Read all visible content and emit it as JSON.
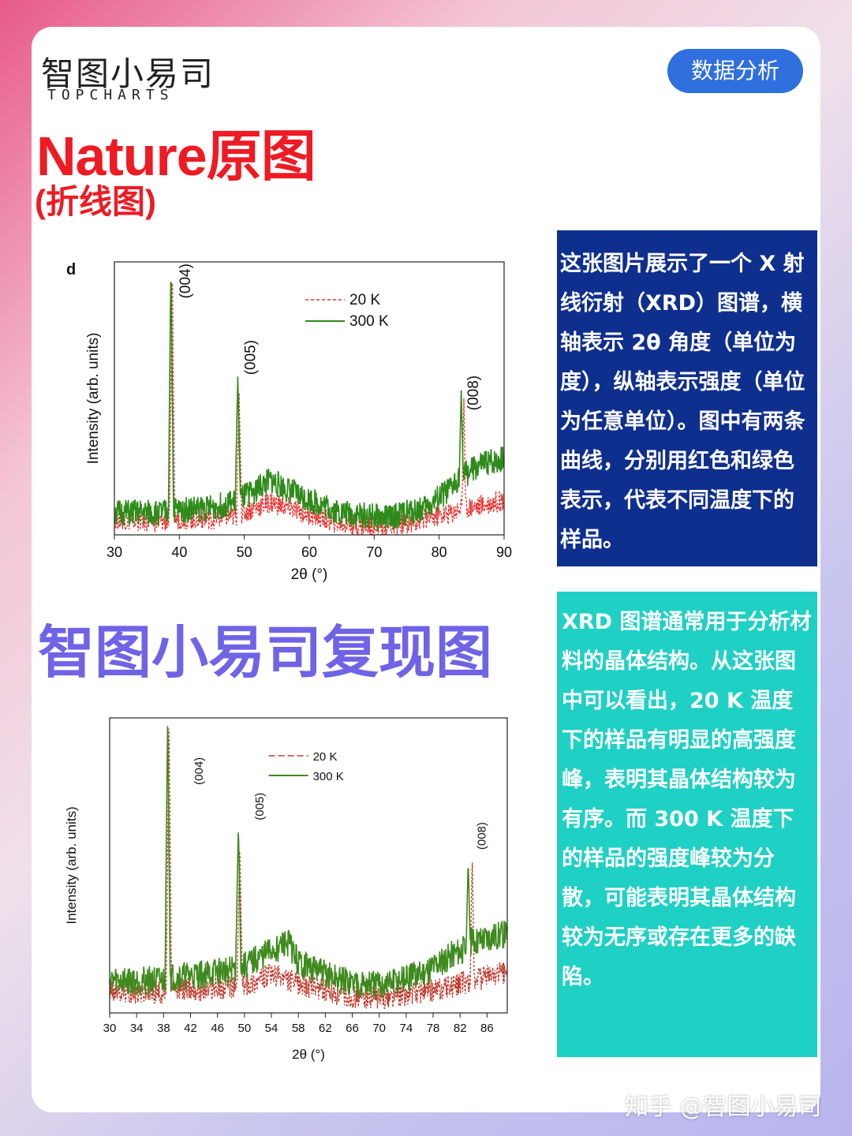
{
  "brand": {
    "name_cn": "智图小易司",
    "name_en": "TOPCHARTS"
  },
  "badge": "数据分析",
  "section1": {
    "title": "Nature原图",
    "subtitle": "(折线图)"
  },
  "section2": {
    "title": "智图小易司复现图"
  },
  "text_box_1": "这张图片展示了一个 X 射线衍射（XRD）图谱，横轴表示 2θ 角度（单位为度），纵轴表示强度（单位为任意单位）。图中有两条曲线，分别用红色和绿色表示，代表不同温度下的样品。",
  "text_box_2": "XRD 图谱通常用于分析材料的晶体结构。从这张图中可以看出，20 K 温度下的样品有明显的高强度峰，表明其晶体结构较为有序。而 300 K 温度下的样品的强度峰较为分散，可能表明其晶体结构较为无序或存在更多的缺陷。",
  "watermark": "知乎 @智图小易司",
  "colors": {
    "series_20K": "#e8312f",
    "series_300K": "#2e8b1a",
    "box1": "#0f2f8e",
    "box2": "#1fd0c4",
    "title1": "#ee1b24",
    "title2": "#6f63e6"
  },
  "chart_data": [
    {
      "type": "line",
      "panel_label": "d",
      "xlabel": "2θ (°)",
      "ylabel": "Intensity (arb. units)",
      "xlim": [
        30,
        90
      ],
      "ylim": [
        0,
        100
      ],
      "xticks": [
        30,
        40,
        50,
        60,
        70,
        80,
        90
      ],
      "legend": "top-center",
      "annotations": [
        {
          "text": "(004)",
          "x": 39.0,
          "y": 93
        },
        {
          "text": "(005)",
          "x": 49.0,
          "y": 65
        },
        {
          "text": "(008)",
          "x": 83.3,
          "y": 52
        }
      ],
      "series": [
        {
          "name": "20 K",
          "style": "dashed",
          "color": "#e8312f",
          "points": [
            [
              30,
              6
            ],
            [
              35,
              5
            ],
            [
              38.5,
              5
            ],
            [
              38.9,
              100
            ],
            [
              39.3,
              6
            ],
            [
              45,
              6
            ],
            [
              48.8,
              7
            ],
            [
              49.2,
              52
            ],
            [
              49.6,
              8
            ],
            [
              54,
              12
            ],
            [
              58,
              9
            ],
            [
              65,
              4
            ],
            [
              72,
              3
            ],
            [
              78,
              6
            ],
            [
              82,
              8
            ],
            [
              83.5,
              10
            ],
            [
              83.8,
              50
            ],
            [
              84.1,
              10
            ],
            [
              87,
              11
            ],
            [
              90,
              13
            ]
          ]
        },
        {
          "name": "300 K",
          "style": "solid",
          "color": "#2e8b1a",
          "points": [
            [
              30,
              8
            ],
            [
              35,
              8
            ],
            [
              38.3,
              8
            ],
            [
              38.7,
              100
            ],
            [
              39.1,
              9
            ],
            [
              45,
              10
            ],
            [
              48.6,
              12
            ],
            [
              49.0,
              58
            ],
            [
              49.4,
              13
            ],
            [
              54,
              20
            ],
            [
              58,
              15
            ],
            [
              65,
              8
            ],
            [
              72,
              6
            ],
            [
              78,
              10
            ],
            [
              82,
              17
            ],
            [
              83.1,
              22
            ],
            [
              83.4,
              53
            ],
            [
              83.7,
              22
            ],
            [
              87,
              26
            ],
            [
              90,
              28
            ]
          ]
        }
      ]
    },
    {
      "type": "line",
      "xlabel": "2θ (°)",
      "ylabel": "Intensity (arb. units)",
      "xlim": [
        30,
        89
      ],
      "ylim": [
        0,
        100
      ],
      "xticks": [
        30,
        34,
        38,
        42,
        46,
        50,
        54,
        58,
        62,
        66,
        70,
        74,
        78,
        82,
        86
      ],
      "legend": "top-center",
      "annotations": [
        {
          "text": "(004)",
          "x": 41.0,
          "y": 82
        },
        {
          "text": "(005)",
          "x": 50.0,
          "y": 70
        },
        {
          "text": "(008)",
          "x": 83.0,
          "y": 60
        }
      ],
      "series": [
        {
          "name": "20 K",
          "style": "dashed",
          "color": "#c0392b",
          "points": [
            [
              30,
              8
            ],
            [
              34,
              7
            ],
            [
              38.4,
              7
            ],
            [
              38.8,
              100
            ],
            [
              39.2,
              8
            ],
            [
              44,
              8
            ],
            [
              48.9,
              9
            ],
            [
              49.3,
              58
            ],
            [
              49.7,
              9
            ],
            [
              54,
              13
            ],
            [
              58,
              10
            ],
            [
              64,
              6
            ],
            [
              70,
              5
            ],
            [
              76,
              7
            ],
            [
              81,
              9
            ],
            [
              83.5,
              11
            ],
            [
              83.8,
              54
            ],
            [
              84.1,
              11
            ],
            [
              87,
              13
            ],
            [
              89,
              14
            ]
          ]
        },
        {
          "name": "300 K",
          "style": "solid",
          "color": "#3f8a1e",
          "points": [
            [
              30,
              11
            ],
            [
              34,
              11
            ],
            [
              38.2,
              11
            ],
            [
              38.6,
              100
            ],
            [
              39.0,
              12
            ],
            [
              44,
              13
            ],
            [
              48.7,
              15
            ],
            [
              49.1,
              64
            ],
            [
              49.5,
              15
            ],
            [
              54,
              21
            ],
            [
              56.5,
              24
            ],
            [
              58,
              17
            ],
            [
              64,
              11
            ],
            [
              70,
              9
            ],
            [
              76,
              13
            ],
            [
              81,
              20
            ],
            [
              82.9,
              22
            ],
            [
              83.2,
              52
            ],
            [
              83.5,
              24
            ],
            [
              87,
              26
            ],
            [
              89,
              27
            ]
          ]
        }
      ]
    }
  ]
}
